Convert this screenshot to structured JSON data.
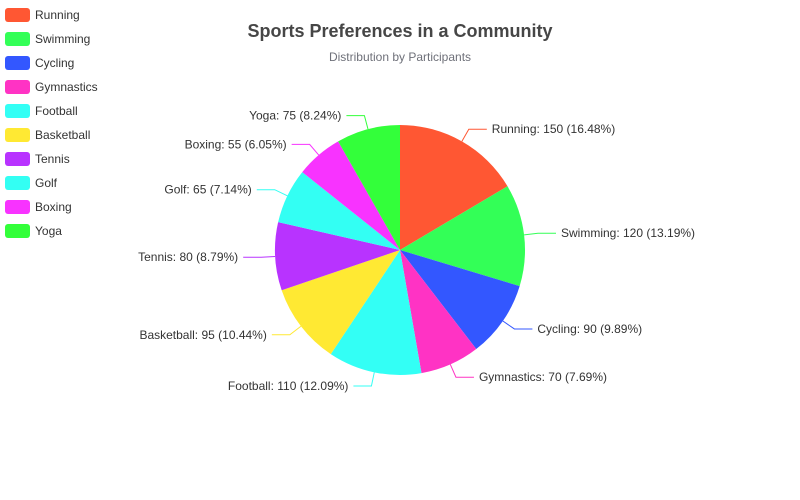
{
  "chart_data": {
    "type": "pie",
    "title": "Sports Preferences in a Community",
    "subtitle": "Distribution by Participants",
    "legend_position": "top-left",
    "series": [
      {
        "slices": [
          {
            "name": "Running",
            "value": 150,
            "label": "Running: 150 (16.48%)",
            "color": "#FF5733"
          },
          {
            "name": "Swimming",
            "value": 120,
            "label": "Swimming: 120 (13.19%)",
            "color": "#33FF57"
          },
          {
            "name": "Cycling",
            "value": 90,
            "label": "Cycling: 90 (9.89%)",
            "color": "#3357FF"
          },
          {
            "name": "Gymnastics",
            "value": 70,
            "label": "Gymnastics: 70 (7.69%)",
            "color": "#FF33C4"
          },
          {
            "name": "Football",
            "value": 110,
            "label": "Football: 110 (12.09%)",
            "color": "#33FFF5"
          },
          {
            "name": "Basketball",
            "value": 95,
            "label": "Basketball: 95 (10.44%)",
            "color": "#FFE933"
          },
          {
            "name": "Tennis",
            "value": 80,
            "label": "Tennis: 80 (8.79%)",
            "color": "#B833FF"
          },
          {
            "name": "Golf",
            "value": 65,
            "label": "Golf: 65 (7.14%)",
            "color": "#33FFF3"
          },
          {
            "name": "Boxing",
            "value": 55,
            "label": "Boxing: 55 (6.05%)",
            "color": "#F833FF"
          },
          {
            "name": "Yoga",
            "value": 75,
            "label": "Yoga: 75 (8.24%)",
            "color": "#33FF3A"
          }
        ]
      }
    ]
  }
}
